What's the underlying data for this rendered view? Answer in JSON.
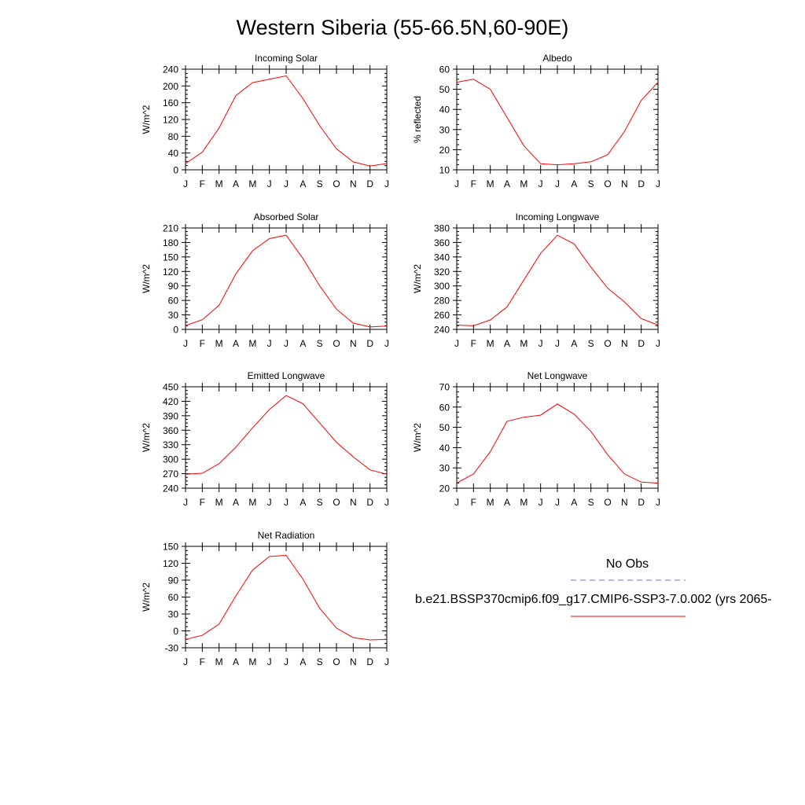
{
  "figure": {
    "title": "Western Siberia (55-66.5N,60-90E)"
  },
  "legend": {
    "obs_label": "No Obs",
    "obs_color": "#6f6fe6",
    "model_label": "b.e21.BSSP370cmip6.f09_g17.CMIP6-SSP3-7.0.002 (yrs 2065-",
    "model_color": "#ff0000"
  },
  "chart_data": [
    {
      "type": "line",
      "title": "Incoming Solar",
      "ylabel": "W/m^2",
      "x": [
        "J",
        "F",
        "M",
        "A",
        "M",
        "J",
        "J",
        "A",
        "S",
        "O",
        "N",
        "D",
        "J"
      ],
      "ylim": [
        0,
        240
      ],
      "yticks": [
        0,
        40,
        80,
        120,
        160,
        200,
        240
      ],
      "series": [
        {
          "values": [
            15,
            42,
            100,
            177,
            208,
            216,
            224,
            170,
            105,
            50,
            19,
            9,
            15
          ],
          "color": "#ff0000"
        }
      ]
    },
    {
      "type": "line",
      "title": "Albedo",
      "ylabel": "% reflected",
      "x": [
        "J",
        "F",
        "M",
        "A",
        "M",
        "J",
        "J",
        "A",
        "S",
        "O",
        "N",
        "D",
        "J"
      ],
      "ylim": [
        10,
        60
      ],
      "yticks": [
        10,
        20,
        30,
        40,
        50,
        60
      ],
      "series": [
        {
          "values": [
            53.5,
            55,
            50,
            36,
            22,
            13,
            12.5,
            13,
            14,
            17.5,
            29,
            44.5,
            53.5
          ],
          "color": "#ff0000"
        }
      ]
    },
    {
      "type": "line",
      "title": "Absorbed Solar",
      "ylabel": "W/m^2",
      "x": [
        "J",
        "F",
        "M",
        "A",
        "M",
        "J",
        "J",
        "A",
        "S",
        "O",
        "N",
        "D",
        "J"
      ],
      "ylim": [
        0,
        210
      ],
      "yticks": [
        0,
        30,
        60,
        90,
        120,
        150,
        180,
        210
      ],
      "series": [
        {
          "values": [
            8,
            20,
            50,
            115,
            163,
            188,
            195,
            147,
            90,
            42,
            13,
            5,
            7
          ],
          "color": "#ff0000"
        }
      ]
    },
    {
      "type": "line",
      "title": "Incoming Longwave",
      "ylabel": "W/m^2",
      "x": [
        "J",
        "F",
        "M",
        "A",
        "M",
        "J",
        "J",
        "A",
        "S",
        "O",
        "N",
        "D",
        "J"
      ],
      "ylim": [
        240,
        380
      ],
      "yticks": [
        240,
        260,
        280,
        300,
        320,
        340,
        360,
        380
      ],
      "series": [
        {
          "values": [
            246,
            245,
            253,
            271,
            308,
            345,
            370,
            358,
            326,
            297,
            278,
            255,
            246
          ],
          "color": "#ff0000"
        }
      ]
    },
    {
      "type": "line",
      "title": "Emitted Longwave",
      "ylabel": "W/m^2",
      "x": [
        "J",
        "F",
        "M",
        "A",
        "M",
        "J",
        "J",
        "A",
        "S",
        "O",
        "N",
        "D",
        "J"
      ],
      "ylim": [
        240,
        450
      ],
      "yticks": [
        240,
        270,
        300,
        330,
        360,
        390,
        420,
        450
      ],
      "series": [
        {
          "values": [
            269,
            271,
            291,
            325,
            365,
            403,
            432,
            415,
            375,
            335,
            305,
            278,
            269
          ],
          "color": "#ff0000"
        }
      ]
    },
    {
      "type": "line",
      "title": "Net Longwave",
      "ylabel": "W/m^2",
      "x": [
        "J",
        "F",
        "M",
        "A",
        "M",
        "J",
        "J",
        "A",
        "S",
        "O",
        "N",
        "D",
        "J"
      ],
      "ylim": [
        20,
        70
      ],
      "yticks": [
        20,
        30,
        40,
        50,
        60,
        70
      ],
      "series": [
        {
          "values": [
            22.5,
            27,
            38,
            53,
            55,
            56,
            61.5,
            56.5,
            48,
            36.5,
            27,
            23,
            22.5
          ],
          "color": "#ff0000"
        }
      ]
    },
    {
      "type": "line",
      "title": "Net Radiation",
      "ylabel": "W/m^2",
      "x": [
        "J",
        "F",
        "M",
        "A",
        "M",
        "J",
        "J",
        "A",
        "S",
        "O",
        "N",
        "D",
        "J"
      ],
      "ylim": [
        -30,
        150
      ],
      "yticks": [
        -30,
        0,
        30,
        60,
        90,
        120,
        150
      ],
      "series": [
        {
          "values": [
            -15,
            -8,
            12,
            62,
            108,
            132,
            134,
            92,
            40,
            5,
            -12,
            -16,
            -15
          ],
          "color": "#ff0000"
        }
      ]
    }
  ]
}
